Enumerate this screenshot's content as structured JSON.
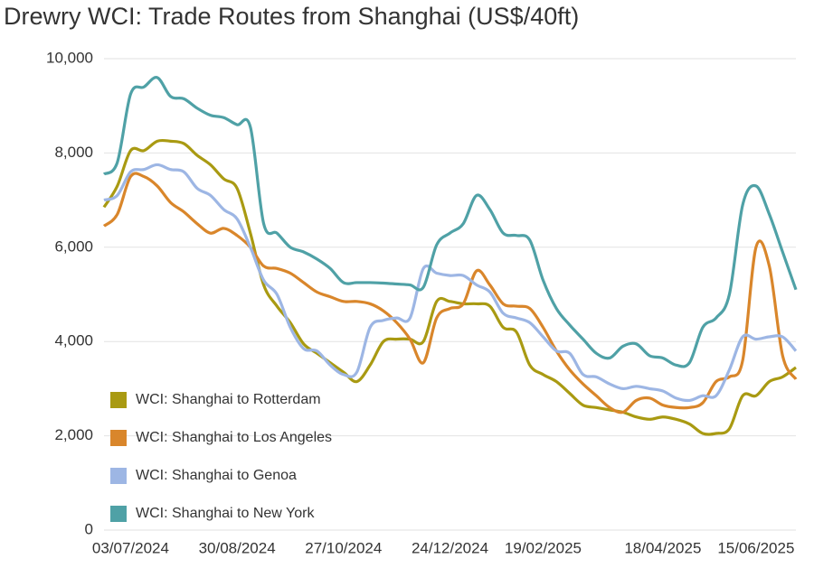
{
  "chart_data": {
    "type": "line",
    "title": "Drewry WCI: Trade Routes from Shanghai (US$/40ft)",
    "categories": [
      null,
      null,
      "03/07/2024",
      null,
      null,
      null,
      null,
      null,
      null,
      null,
      "30/08/2024",
      null,
      null,
      null,
      null,
      null,
      null,
      null,
      "27/10/2024",
      null,
      null,
      null,
      null,
      null,
      null,
      null,
      "24/12/2024",
      null,
      null,
      null,
      null,
      null,
      null,
      "19/02/2025",
      null,
      null,
      null,
      null,
      null,
      null,
      null,
      null,
      "18/04/2025",
      null,
      null,
      null,
      null,
      null,
      null,
      "15/06/2025",
      null,
      null,
      null
    ],
    "series": [
      {
        "name": "WCI: Shanghai to Rotterdam",
        "color": "#a99a12",
        "values": [
          6850,
          7300,
          8050,
          8050,
          8250,
          8250,
          8200,
          7950,
          7750,
          7450,
          7250,
          6300,
          5200,
          4750,
          4400,
          3950,
          3750,
          3550,
          3350,
          3150,
          3500,
          4000,
          4050,
          4050,
          4000,
          4850,
          4850,
          4800,
          4800,
          4750,
          4300,
          4200,
          3500,
          3300,
          3150,
          2900,
          2650,
          2600,
          2550,
          2500,
          2400,
          2350,
          2400,
          2350,
          2250,
          2050,
          2050,
          2150,
          2850,
          2850,
          3150,
          3250,
          3450
        ]
      },
      {
        "name": "WCI: Shanghai to Los Angeles",
        "color": "#d9862b",
        "values": [
          6450,
          6700,
          7500,
          7500,
          7300,
          6950,
          6750,
          6500,
          6300,
          6400,
          6250,
          6000,
          5600,
          5550,
          5450,
          5250,
          5050,
          4950,
          4850,
          4850,
          4800,
          4650,
          4400,
          4050,
          3550,
          4500,
          4700,
          4800,
          5500,
          5200,
          4800,
          4750,
          4700,
          4300,
          3800,
          3400,
          3100,
          2850,
          2600,
          2500,
          2750,
          2800,
          2650,
          2600,
          2600,
          2700,
          3150,
          3250,
          3600,
          6000,
          5600,
          3700,
          3200
        ]
      },
      {
        "name": "WCI: Shanghai to Genoa",
        "color": "#9db6e4",
        "values": [
          7000,
          7100,
          7600,
          7650,
          7750,
          7650,
          7600,
          7250,
          7100,
          6800,
          6600,
          6000,
          5300,
          5000,
          4300,
          3850,
          3800,
          3500,
          3300,
          3350,
          4300,
          4450,
          4500,
          4500,
          5550,
          5450,
          5400,
          5400,
          5200,
          5050,
          4600,
          4500,
          4400,
          4100,
          3800,
          3750,
          3300,
          3250,
          3100,
          3000,
          3050,
          3000,
          2950,
          2800,
          2750,
          2850,
          2850,
          3400,
          4100,
          4050,
          4100,
          4100,
          3800
        ]
      },
      {
        "name": "WCI: Shanghai to New York",
        "color": "#4fa1a6",
        "values": [
          7550,
          7800,
          9250,
          9400,
          9600,
          9200,
          9150,
          8950,
          8800,
          8750,
          8600,
          8550,
          6500,
          6300,
          6000,
          5900,
          5750,
          5550,
          5250,
          5250,
          5250,
          5240,
          5220,
          5200,
          5150,
          6050,
          6300,
          6500,
          7100,
          6800,
          6300,
          6250,
          6150,
          5300,
          4700,
          4350,
          4050,
          3750,
          3650,
          3900,
          3950,
          3700,
          3650,
          3500,
          3550,
          4300,
          4500,
          5000,
          6900,
          7300,
          6700,
          5900,
          5100
        ]
      }
    ],
    "ylim": [
      0,
      10000
    ],
    "yticks": [
      0,
      {
        "value": 2000,
        "label": "2,000"
      },
      {
        "value": 4000,
        "label": "4,000"
      },
      {
        "value": 6000,
        "label": "6,000"
      },
      {
        "value": 8000,
        "label": "8,000"
      },
      {
        "value": 10000,
        "label": "10,000"
      }
    ],
    "grid": true,
    "legend": "lower-left"
  }
}
